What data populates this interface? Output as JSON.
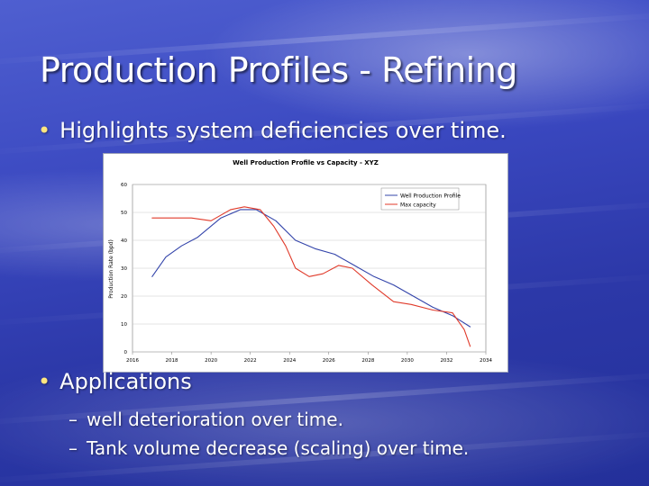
{
  "slide": {
    "title": "Production Profiles - Refining",
    "bullet1": "Highlights system deficiencies over time.",
    "bullet2": "Applications",
    "sub_items": [
      "well deterioration over time.",
      "Tank volume decrease (scaling) over time."
    ],
    "bullet_glyph": "•",
    "dash_glyph": "–"
  },
  "colors": {
    "production": "#3344aa",
    "capacity": "#e03a2a"
  },
  "chart_data": {
    "type": "line",
    "title": "Well Production Profile vs Capacity - XYZ",
    "xlabel": "",
    "ylabel": "Production Rate (bpd)",
    "xlim": [
      2016,
      2034
    ],
    "ylim": [
      0,
      60
    ],
    "x_ticks": [
      2016,
      2018,
      2020,
      2022,
      2024,
      2026,
      2028,
      2030,
      2032,
      2034
    ],
    "y_ticks": [
      0,
      10,
      20,
      30,
      40,
      50,
      60
    ],
    "grid": true,
    "legend_position": "top-right",
    "series": [
      {
        "name": "Well Production Profile",
        "x": [
          2017,
          2017.7,
          2018.5,
          2019.3,
          2020.5,
          2021.5,
          2022.3,
          2023.3,
          2024.3,
          2025.3,
          2026.3,
          2027.3,
          2028.3,
          2029.3,
          2030.3,
          2031.3,
          2032.3,
          2033.2
        ],
        "y": [
          27,
          34,
          38,
          41,
          48,
          51,
          51,
          47,
          40,
          37,
          35,
          31,
          27,
          24,
          20,
          16,
          13,
          9
        ]
      },
      {
        "name": "Max capacity",
        "x": [
          2017,
          2019,
          2020,
          2021,
          2021.7,
          2022.5,
          2023.2,
          2023.8,
          2024.3,
          2025.0,
          2025.7,
          2026.5,
          2027.2,
          2028.2,
          2029.3,
          2030.2,
          2031.3,
          2032.3,
          2032.9,
          2033.2
        ],
        "y": [
          48,
          48,
          47,
          51,
          52,
          51,
          45,
          38,
          30,
          27,
          28,
          31,
          30,
          24,
          18,
          17,
          15,
          14,
          8,
          2
        ]
      }
    ]
  }
}
